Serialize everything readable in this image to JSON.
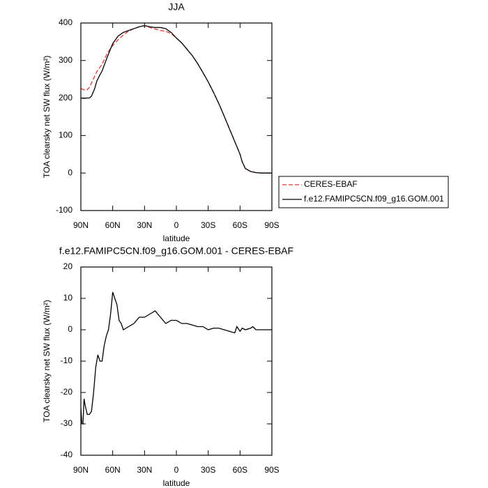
{
  "chart_data": [
    {
      "type": "line",
      "title": "JJA",
      "xlabel": "latitude",
      "ylabel": "TOA clearsky net SW flux (W/m²)",
      "x": [
        90,
        87,
        85,
        82,
        80,
        77,
        75,
        72,
        70,
        65,
        60,
        55,
        50,
        45,
        40,
        35,
        30,
        25,
        20,
        15,
        10,
        5,
        0,
        -5,
        -10,
        -15,
        -20,
        -25,
        -30,
        -35,
        -40,
        -45,
        -50,
        -55,
        -60,
        -62,
        -65,
        -70,
        -75,
        -80,
        -85,
        -90
      ],
      "series": [
        {
          "name": "CERES-EBAF",
          "color": "#e8362d",
          "line_style": "dashed",
          "values": [
            225,
            222,
            220,
            228,
            240,
            258,
            270,
            282,
            290,
            320,
            340,
            355,
            368,
            378,
            385,
            390,
            393,
            388,
            384,
            380,
            378,
            372,
            360,
            347,
            330,
            313,
            292,
            268,
            243,
            215,
            185,
            152,
            118,
            84,
            50,
            30,
            12,
            4,
            1,
            0,
            0,
            0
          ]
        },
        {
          "name": "f.e12.FAMIPC5CN.f09_g16.GOM.001",
          "color": "#000000",
          "line_style": "solid",
          "values": [
            200,
            199,
            200,
            200,
            205,
            225,
            245,
            262,
            272,
            310,
            345,
            365,
            375,
            380,
            385,
            390,
            393,
            390,
            388,
            388,
            385,
            375,
            360,
            347,
            330,
            313,
            292,
            268,
            243,
            215,
            185,
            152,
            118,
            84,
            50,
            30,
            12,
            4,
            1,
            0,
            0,
            0
          ]
        }
      ],
      "xlim": [
        90,
        -90
      ],
      "xticks": [
        {
          "value": 90,
          "label": "90N"
        },
        {
          "value": 60,
          "label": "60N"
        },
        {
          "value": 30,
          "label": "30N"
        },
        0,
        {
          "value": -30,
          "label": "30S"
        },
        {
          "value": -60,
          "label": "60S"
        },
        {
          "value": -90,
          "label": "90S"
        }
      ],
      "ylim": [
        -100,
        400
      ],
      "yticks": [
        -100,
        0,
        100,
        200,
        300,
        400
      ],
      "legend": "right"
    },
    {
      "type": "line",
      "title": "f.e12.FAMIPC5CN.f09_g16.GOM.001 - CERES-EBAF",
      "xlabel": "latitude",
      "ylabel": "TOA clearsky net SW flux (W/m²)",
      "x": [
        90,
        89,
        88,
        87,
        86,
        84,
        82,
        80,
        78,
        76,
        74,
        72,
        70,
        68,
        66,
        64,
        62,
        60,
        58,
        56,
        54,
        52,
        50,
        45,
        40,
        35,
        30,
        25,
        20,
        15,
        10,
        5,
        0,
        -5,
        -10,
        -15,
        -20,
        -25,
        -30,
        -35,
        -40,
        -45,
        -50,
        -55,
        -57,
        -60,
        -62,
        -65,
        -70,
        -72,
        -75,
        -80,
        -85,
        -90
      ],
      "series": [
        {
          "name": null,
          "color": "#000000",
          "line_style": "solid",
          "values": [
            -25,
            -30,
            -30,
            -22,
            -24,
            -27,
            -27,
            -26,
            -20,
            -12,
            -8,
            -10,
            -10,
            -5,
            -2,
            0,
            5,
            12,
            10,
            8,
            3,
            2,
            0,
            1,
            2,
            4,
            4,
            5,
            6,
            4,
            2,
            3,
            3,
            2,
            2,
            1.5,
            1,
            1,
            0,
            0.5,
            0.5,
            0,
            -0.5,
            -1,
            1,
            -0.5,
            0.5,
            0,
            0.5,
            1,
            0,
            0,
            0,
            0
          ]
        }
      ],
      "xlim": [
        90,
        -90
      ],
      "xticks": [
        {
          "value": 90,
          "label": "90N"
        },
        {
          "value": 60,
          "label": "60N"
        },
        {
          "value": 30,
          "label": "30N"
        },
        0,
        {
          "value": -30,
          "label": "30S"
        },
        {
          "value": -60,
          "label": "60S"
        },
        {
          "value": -90,
          "label": "90S"
        }
      ],
      "ylim": [
        -40,
        20
      ],
      "yticks": [
        -40,
        -30,
        -20,
        -10,
        0,
        10,
        20
      ]
    }
  ]
}
